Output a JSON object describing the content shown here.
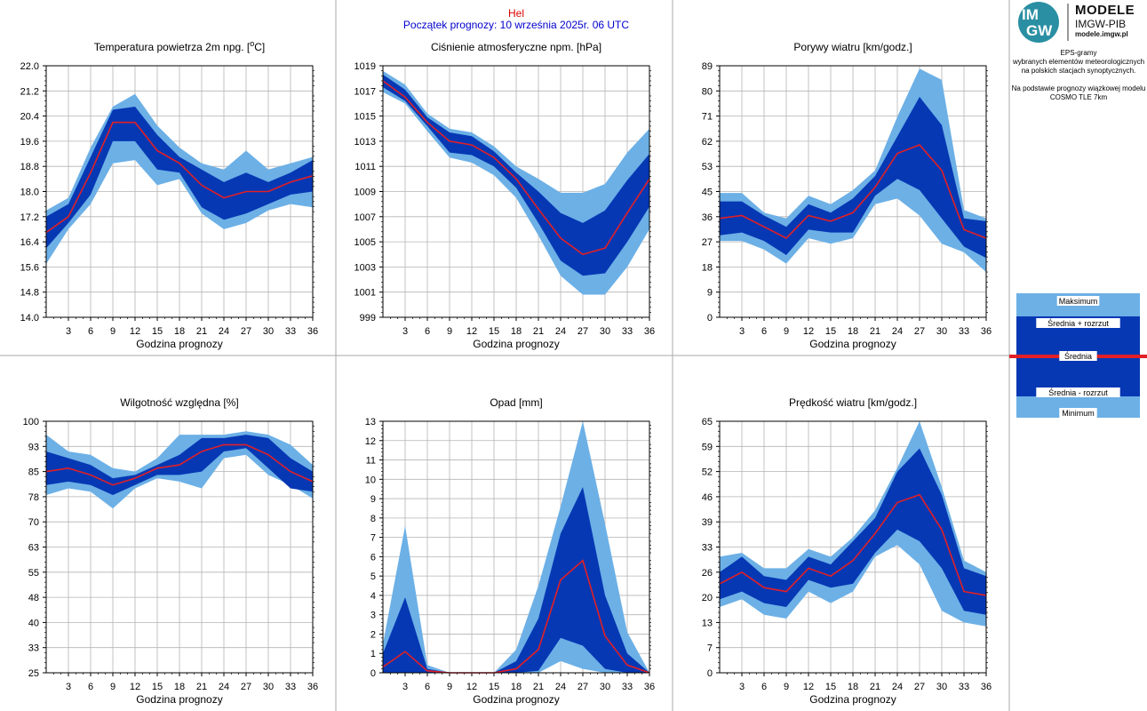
{
  "header": {
    "station": "Hel",
    "forecast_start": "Początek prognozy: 10 września 2025r. 06 UTC"
  },
  "logo": {
    "circle_top": "IM",
    "circle_bottom": "GW",
    "line1": "MODELE",
    "line2": "IMGW-PIB",
    "line3": "modele.imgw.pl"
  },
  "info": {
    "lines": [
      "EPS-gramy",
      "wybranych elementów meteorologicznych",
      "na polskich stacjach  synoptycznych.",
      "",
      "Na podstawie prognozy wiązkowej modelu",
      "COSMO TLE 7km"
    ]
  },
  "legend": {
    "max": "Maksimum",
    "mean_plus": "Średnia + rozrzut",
    "mean": "Średnia",
    "mean_minus": "Średnia - rozrzut",
    "min": "Minimum"
  },
  "colors": {
    "light": "#6cb0e6",
    "dark": "#0638b4",
    "mean": "#e21f26",
    "grid": "#b4b4b4",
    "title_red": "#e00000",
    "title_blue": "#0000cc"
  },
  "chart_data": [
    {
      "type": "area",
      "title": "Temperatura powietrza 2m npg. [",
      "title_sup": "o",
      "title_end": "C]",
      "xlabel": "Godzina prognozy",
      "ylim": [
        14.0,
        22.0
      ],
      "yticks": [
        "14.0",
        "14.8",
        "15.6",
        "16.4",
        "17.2",
        "18.0",
        "18.8",
        "19.6",
        "20.4",
        "21.2",
        "22.0"
      ],
      "x": [
        0,
        3,
        6,
        9,
        12,
        15,
        18,
        21,
        24,
        27,
        30,
        33,
        36
      ],
      "xticks": [
        3,
        6,
        9,
        12,
        15,
        18,
        21,
        24,
        27,
        30,
        33,
        36
      ],
      "max": [
        17.4,
        17.8,
        19.4,
        20.7,
        21.1,
        20.1,
        19.4,
        18.9,
        18.7,
        19.3,
        18.7,
        18.9,
        19.1
      ],
      "mean_plus": [
        17.2,
        17.6,
        19.1,
        20.6,
        20.7,
        19.8,
        19.1,
        18.7,
        18.3,
        18.6,
        18.3,
        18.6,
        19.0
      ],
      "mean": [
        16.7,
        17.2,
        18.6,
        20.2,
        20.2,
        19.3,
        18.9,
        18.2,
        17.8,
        18.0,
        18.0,
        18.3,
        18.5
      ],
      "mean_minus": [
        16.2,
        17.0,
        17.9,
        19.6,
        19.6,
        18.7,
        18.6,
        17.5,
        17.1,
        17.3,
        17.6,
        17.9,
        18.0
      ],
      "min": [
        15.7,
        16.8,
        17.6,
        18.9,
        19.0,
        18.2,
        18.4,
        17.3,
        16.8,
        17.0,
        17.4,
        17.6,
        17.5
      ]
    },
    {
      "type": "area",
      "title": "Ciśnienie atmosferyczne npm. [hPa]",
      "xlabel": "Godzina prognozy",
      "ylim": [
        999,
        1019
      ],
      "yticks": [
        "999",
        "1001",
        "1003",
        "1005",
        "1007",
        "1009",
        "1011",
        "1013",
        "1015",
        "1017",
        "1019"
      ],
      "x": [
        0,
        3,
        6,
        9,
        12,
        15,
        18,
        21,
        24,
        27,
        30,
        33,
        36
      ],
      "xticks": [
        3,
        6,
        9,
        12,
        15,
        18,
        21,
        24,
        27,
        30,
        33,
        36
      ],
      "max": [
        1018.6,
        1017.5,
        1015.2,
        1014.0,
        1013.7,
        1012.6,
        1011.0,
        1010.0,
        1008.9,
        1008.9,
        1009.6,
        1012.1,
        1014.0
      ],
      "mean_plus": [
        1018.3,
        1017.1,
        1014.9,
        1013.7,
        1013.4,
        1012.2,
        1010.5,
        1009.0,
        1007.3,
        1006.5,
        1007.5,
        1009.9,
        1012.0
      ],
      "mean": [
        1017.8,
        1016.5,
        1014.5,
        1013.0,
        1012.7,
        1011.7,
        1010.0,
        1007.6,
        1005.3,
        1004.0,
        1004.5,
        1007.3,
        1010.0
      ],
      "mean_minus": [
        1017.3,
        1016.2,
        1014.2,
        1012.1,
        1011.9,
        1011.0,
        1009.3,
        1006.5,
        1003.5,
        1002.3,
        1002.5,
        1005.0,
        1007.8
      ],
      "min": [
        1016.9,
        1016.0,
        1013.8,
        1011.7,
        1011.3,
        1010.3,
        1008.5,
        1005.5,
        1002.3,
        1000.8,
        1000.8,
        1003.0,
        1006.0
      ]
    },
    {
      "type": "area",
      "title": "Porywy wiatru [km/godz.]",
      "xlabel": "Godzina prognozy",
      "ylim": [
        0,
        89
      ],
      "yticks": [
        "0",
        "9",
        "18",
        "27",
        "36",
        "45",
        "53",
        "62",
        "71",
        "80",
        "89"
      ],
      "x": [
        0,
        3,
        6,
        9,
        12,
        15,
        18,
        21,
        24,
        27,
        30,
        33,
        36
      ],
      "xticks": [
        3,
        6,
        9,
        12,
        15,
        18,
        21,
        24,
        27,
        30,
        33,
        36
      ],
      "max": [
        44,
        44,
        37,
        35,
        43,
        40,
        45,
        52,
        71,
        88,
        84,
        38,
        35
      ],
      "mean_plus": [
        41,
        41,
        36,
        32,
        40,
        37,
        42,
        50,
        64,
        78,
        68,
        35,
        34
      ],
      "mean": [
        35,
        36,
        32,
        28,
        36,
        34,
        37,
        46,
        58,
        61,
        52,
        31,
        28
      ],
      "mean_minus": [
        29,
        30,
        27,
        22,
        31,
        30,
        30,
        43,
        49,
        45,
        35,
        25,
        21
      ],
      "min": [
        27,
        27,
        24,
        19,
        28,
        26,
        28,
        40,
        42,
        36,
        26,
        23,
        16
      ]
    },
    {
      "type": "area",
      "title": "Wilgotność względna [%]",
      "xlabel": "Godzina prognozy",
      "ylim": [
        25,
        100
      ],
      "yticks": [
        "25",
        "33",
        "40",
        "48",
        "55",
        "63",
        "70",
        "78",
        "85",
        "93",
        "100"
      ],
      "x": [
        0,
        3,
        6,
        9,
        12,
        15,
        18,
        21,
        24,
        27,
        30,
        33,
        36
      ],
      "xticks": [
        3,
        6,
        9,
        12,
        15,
        18,
        21,
        24,
        27,
        30,
        33,
        36
      ],
      "max": [
        96,
        91,
        90,
        86,
        85,
        89,
        96,
        96,
        96,
        97,
        96,
        93,
        87
      ],
      "mean_plus": [
        91,
        89,
        87,
        83,
        84,
        87,
        90,
        95,
        95,
        96,
        95,
        89,
        85
      ],
      "mean": [
        85,
        86,
        84,
        81,
        83,
        86,
        87,
        91,
        93,
        93,
        90,
        85,
        82
      ],
      "mean_minus": [
        81,
        82,
        81,
        78,
        81,
        84,
        84,
        85,
        91,
        92,
        86,
        80,
        79
      ],
      "min": [
        78,
        80,
        79,
        74,
        80,
        83,
        82,
        80,
        89,
        90,
        84,
        81,
        77
      ]
    },
    {
      "type": "area",
      "title": "Opad [mm]",
      "xlabel": "Godzina prognozy",
      "ylim": [
        0,
        13
      ],
      "yticks": [
        "0",
        "1",
        "2",
        "3",
        "4",
        "5",
        "6",
        "7",
        "8",
        "9",
        "10",
        "11",
        "12",
        "13"
      ],
      "x": [
        0,
        3,
        6,
        9,
        12,
        15,
        18,
        21,
        24,
        27,
        30,
        33,
        36
      ],
      "xticks": [
        3,
        6,
        9,
        12,
        15,
        18,
        21,
        24,
        27,
        30,
        33,
        36
      ],
      "max": [
        1.5,
        7.6,
        0.4,
        0,
        0,
        0,
        1.2,
        4.5,
        8.6,
        13.0,
        7.7,
        2.1,
        0
      ],
      "mean_plus": [
        1.0,
        3.9,
        0.2,
        0,
        0,
        0,
        0.6,
        2.8,
        7.2,
        9.6,
        4.0,
        1.0,
        0
      ],
      "mean": [
        0.3,
        1.1,
        0.1,
        0,
        0,
        0,
        0.2,
        1.2,
        4.8,
        5.8,
        1.9,
        0.4,
        0
      ],
      "mean_minus": [
        0,
        0,
        0,
        0,
        0,
        0,
        0,
        0.1,
        1.8,
        1.4,
        0.2,
        0,
        0
      ],
      "min": [
        0,
        0,
        0,
        0,
        0,
        0,
        0,
        0,
        0.6,
        0.2,
        0,
        0,
        0
      ]
    },
    {
      "type": "area",
      "title": "Prędkość wiatru [km/godz.]",
      "xlabel": "Godzina prognozy",
      "ylim": [
        0,
        65
      ],
      "yticks": [
        "0",
        "7",
        "13",
        "20",
        "26",
        "33",
        "39",
        "46",
        "52",
        "59",
        "65"
      ],
      "x": [
        0,
        3,
        6,
        9,
        12,
        15,
        18,
        21,
        24,
        27,
        30,
        33,
        36
      ],
      "xticks": [
        3,
        6,
        9,
        12,
        15,
        18,
        21,
        24,
        27,
        30,
        33,
        36
      ],
      "max": [
        30,
        31,
        27,
        27,
        32,
        30,
        35,
        42,
        53,
        65,
        48,
        29,
        26
      ],
      "mean_plus": [
        26,
        30,
        25,
        24,
        30,
        28,
        34,
        40,
        52,
        58,
        46,
        27,
        25
      ],
      "mean": [
        23,
        26,
        22,
        21,
        27,
        25,
        29,
        36,
        44,
        46,
        37,
        21,
        20
      ],
      "mean_minus": [
        19,
        21,
        18,
        17,
        24,
        22,
        23,
        31,
        37,
        34,
        27,
        16,
        15
      ],
      "min": [
        17,
        19,
        15,
        14,
        21,
        18,
        21,
        30,
        33,
        28,
        16,
        13,
        12
      ]
    }
  ]
}
